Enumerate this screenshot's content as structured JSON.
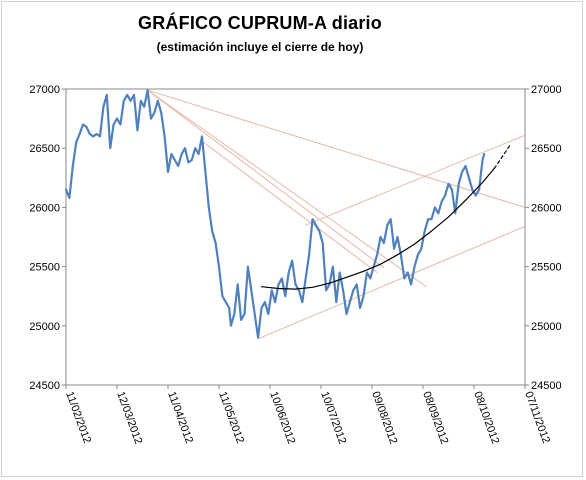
{
  "chart_data": {
    "type": "line",
    "title": "GRÁFICO CUPRUM-A diario",
    "subtitle": "(estimación incluye el cierre de hoy)",
    "xlabel": "",
    "ylabel": "",
    "ylim": [
      24500,
      27000
    ],
    "y_ticks": [
      24500,
      25000,
      25500,
      26000,
      26500,
      27000
    ],
    "y_ticks_both_sides": true,
    "grid": false,
    "legend": "none",
    "x_range": [
      "2012-02-11",
      "2012-11-07"
    ],
    "x_tick_labels": [
      "11/02/2012",
      "12/03/2012",
      "11/04/2012",
      "11/05/2012",
      "10/06/2012",
      "10/07/2012",
      "09/08/2012",
      "08/09/2012",
      "08/10/2012",
      "07/11/2012"
    ],
    "series": [
      {
        "style": "solid",
        "color": "#4f81bd",
        "points": [
          [
            "2012-02-11",
            26150
          ],
          [
            "2012-02-13",
            26080
          ],
          [
            "2012-02-15",
            26350
          ],
          [
            "2012-02-17",
            26550
          ],
          [
            "2012-02-19",
            26620
          ],
          [
            "2012-02-21",
            26700
          ],
          [
            "2012-02-23",
            26680
          ],
          [
            "2012-02-25",
            26620
          ],
          [
            "2012-02-27",
            26600
          ],
          [
            "2012-02-29",
            26620
          ],
          [
            "2012-03-02",
            26600
          ],
          [
            "2012-03-04",
            26850
          ],
          [
            "2012-03-06",
            26950
          ],
          [
            "2012-03-08",
            26500
          ],
          [
            "2012-03-10",
            26700
          ],
          [
            "2012-03-12",
            26750
          ],
          [
            "2012-03-14",
            26700
          ],
          [
            "2012-03-16",
            26900
          ],
          [
            "2012-03-18",
            26950
          ],
          [
            "2012-03-20",
            26900
          ],
          [
            "2012-03-22",
            26950
          ],
          [
            "2012-03-24",
            26650
          ],
          [
            "2012-03-26",
            26900
          ],
          [
            "2012-03-28",
            26850
          ],
          [
            "2012-03-30",
            26990
          ],
          [
            "2012-04-01",
            26750
          ],
          [
            "2012-04-03",
            26800
          ],
          [
            "2012-04-05",
            26900
          ],
          [
            "2012-04-07",
            26800
          ],
          [
            "2012-04-09",
            26600
          ],
          [
            "2012-04-11",
            26300
          ],
          [
            "2012-04-13",
            26450
          ],
          [
            "2012-04-15",
            26400
          ],
          [
            "2012-04-17",
            26350
          ],
          [
            "2012-04-19",
            26450
          ],
          [
            "2012-04-21",
            26500
          ],
          [
            "2012-04-23",
            26380
          ],
          [
            "2012-04-25",
            26400
          ],
          [
            "2012-04-27",
            26500
          ],
          [
            "2012-04-29",
            26450
          ],
          [
            "2012-05-01",
            26600
          ],
          [
            "2012-05-03",
            26300
          ],
          [
            "2012-05-05",
            26000
          ],
          [
            "2012-05-07",
            25800
          ],
          [
            "2012-05-09",
            25700
          ],
          [
            "2012-05-11",
            25500
          ],
          [
            "2012-05-13",
            25250
          ],
          [
            "2012-05-15",
            25200
          ],
          [
            "2012-05-17",
            25150
          ],
          [
            "2012-05-18",
            25000
          ],
          [
            "2012-05-20",
            25100
          ],
          [
            "2012-05-22",
            25350
          ],
          [
            "2012-05-24",
            25050
          ],
          [
            "2012-05-26",
            25100
          ],
          [
            "2012-05-28",
            25500
          ],
          [
            "2012-05-30",
            25300
          ],
          [
            "2012-06-01",
            25100
          ],
          [
            "2012-06-03",
            24900
          ],
          [
            "2012-06-05",
            25150
          ],
          [
            "2012-06-07",
            25200
          ],
          [
            "2012-06-09",
            25100
          ],
          [
            "2012-06-11",
            25300
          ],
          [
            "2012-06-13",
            25200
          ],
          [
            "2012-06-15",
            25350
          ],
          [
            "2012-06-17",
            25400
          ],
          [
            "2012-06-19",
            25250
          ],
          [
            "2012-06-21",
            25450
          ],
          [
            "2012-06-23",
            25550
          ],
          [
            "2012-06-25",
            25350
          ],
          [
            "2012-06-27",
            25300
          ],
          [
            "2012-06-29",
            25200
          ],
          [
            "2012-07-01",
            25400
          ],
          [
            "2012-07-03",
            25600
          ],
          [
            "2012-07-05",
            25900
          ],
          [
            "2012-07-07",
            25850
          ],
          [
            "2012-07-09",
            25800
          ],
          [
            "2012-07-11",
            25700
          ],
          [
            "2012-07-13",
            25300
          ],
          [
            "2012-07-15",
            25350
          ],
          [
            "2012-07-17",
            25500
          ],
          [
            "2012-07-19",
            25200
          ],
          [
            "2012-07-21",
            25450
          ],
          [
            "2012-07-23",
            25300
          ],
          [
            "2012-07-25",
            25100
          ],
          [
            "2012-07-27",
            25200
          ],
          [
            "2012-07-29",
            25300
          ],
          [
            "2012-07-31",
            25350
          ],
          [
            "2012-08-02",
            25150
          ],
          [
            "2012-08-04",
            25250
          ],
          [
            "2012-08-06",
            25450
          ],
          [
            "2012-08-08",
            25400
          ],
          [
            "2012-08-10",
            25500
          ],
          [
            "2012-08-12",
            25600
          ],
          [
            "2012-08-14",
            25750
          ],
          [
            "2012-08-16",
            25700
          ],
          [
            "2012-08-18",
            25850
          ],
          [
            "2012-08-20",
            25900
          ],
          [
            "2012-08-22",
            25650
          ],
          [
            "2012-08-24",
            25750
          ],
          [
            "2012-08-26",
            25600
          ],
          [
            "2012-08-28",
            25400
          ],
          [
            "2012-08-30",
            25450
          ],
          [
            "2012-09-01",
            25350
          ],
          [
            "2012-09-03",
            25500
          ],
          [
            "2012-09-05",
            25600
          ],
          [
            "2012-09-07",
            25650
          ],
          [
            "2012-09-09",
            25800
          ],
          [
            "2012-09-11",
            25900
          ],
          [
            "2012-09-13",
            25900
          ],
          [
            "2012-09-15",
            26000
          ],
          [
            "2012-09-17",
            25950
          ],
          [
            "2012-09-19",
            26050
          ],
          [
            "2012-09-21",
            26100
          ],
          [
            "2012-09-23",
            26200
          ],
          [
            "2012-09-25",
            26150
          ],
          [
            "2012-09-27",
            25950
          ],
          [
            "2012-09-29",
            26200
          ],
          [
            "2012-10-01",
            26300
          ],
          [
            "2012-10-03",
            26350
          ],
          [
            "2012-10-05",
            26250
          ],
          [
            "2012-10-07",
            26150
          ],
          [
            "2012-10-09",
            26100
          ],
          [
            "2012-10-11",
            26150
          ],
          [
            "2012-10-13",
            26400
          ],
          [
            "2012-10-14",
            26450
          ]
        ]
      },
      {
        "style": "curve",
        "color": "#000000",
        "points": [
          [
            "2012-06-05",
            25330
          ],
          [
            "2012-06-15",
            25315
          ],
          [
            "2012-06-25",
            25310
          ],
          [
            "2012-07-05",
            25325
          ],
          [
            "2012-07-15",
            25360
          ],
          [
            "2012-07-25",
            25410
          ],
          [
            "2012-08-04",
            25460
          ],
          [
            "2012-08-14",
            25520
          ],
          [
            "2012-08-24",
            25600
          ],
          [
            "2012-09-03",
            25690
          ],
          [
            "2012-09-13",
            25800
          ],
          [
            "2012-09-23",
            25920
          ],
          [
            "2012-10-03",
            26060
          ],
          [
            "2012-10-13",
            26210
          ],
          [
            "2012-10-20",
            26330
          ]
        ]
      },
      {
        "style": "dashed",
        "color": "#000000",
        "points": [
          [
            "2012-10-20",
            26330
          ],
          [
            "2012-10-29",
            26520
          ]
        ]
      }
    ],
    "trendlines": [
      {
        "color": "#e6b8a7",
        "points": [
          [
            "2012-03-30",
            26990
          ],
          [
            "2012-11-07",
            26000
          ]
        ]
      },
      {
        "color": "#e6b8a7",
        "points": [
          [
            "2012-03-30",
            26990
          ],
          [
            "2012-09-10",
            25330
          ]
        ]
      },
      {
        "color": "#e6b8a7",
        "points": [
          [
            "2012-03-30",
            26990
          ],
          [
            "2012-08-16",
            25490
          ]
        ]
      },
      {
        "color": "#e6b8a7",
        "points": [
          [
            "2012-05-01",
            26560
          ],
          [
            "2012-08-12",
            25450
          ]
        ]
      },
      {
        "color": "#e6b8a7",
        "points": [
          [
            "2012-07-01",
            25850
          ],
          [
            "2012-11-07",
            26610
          ]
        ]
      },
      {
        "color": "#e6b8a7",
        "points": [
          [
            "2012-06-03",
            24890
          ],
          [
            "2012-11-07",
            25840
          ]
        ]
      }
    ]
  }
}
